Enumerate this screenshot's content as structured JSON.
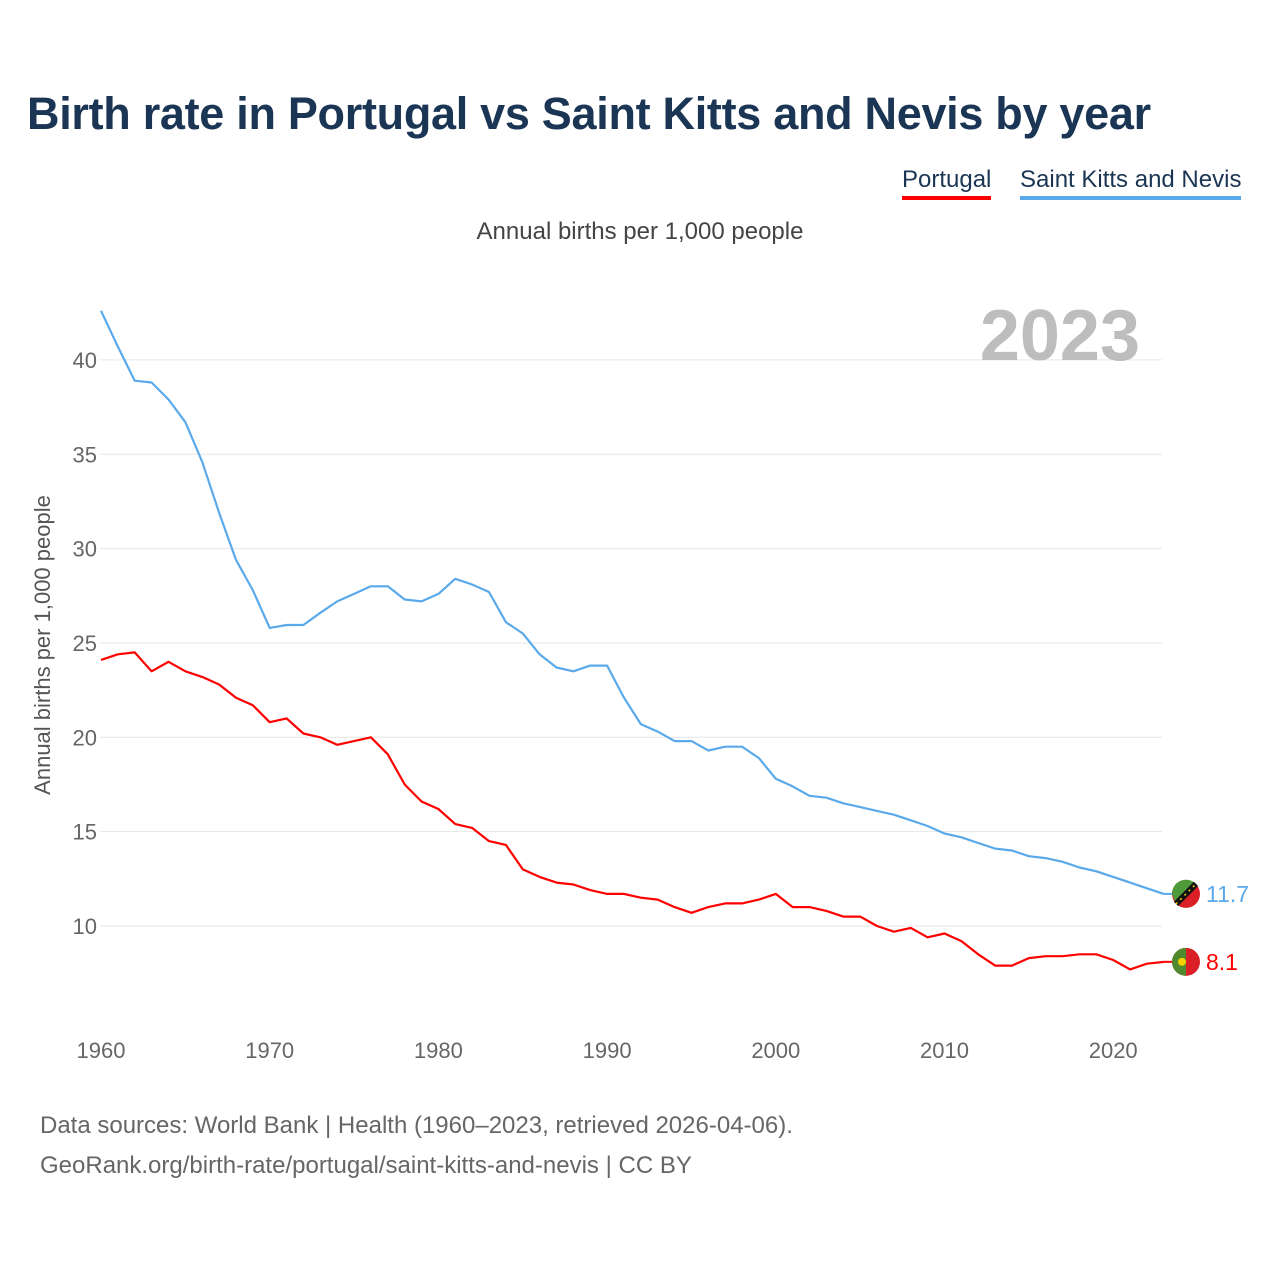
{
  "title": "Birth rate in Portugal vs Saint Kitts and Nevis by year",
  "legend": [
    "Portugal",
    "Saint Kitts and Nevis"
  ],
  "subtitle": "Annual births per 1,000 people",
  "year_label": "2023",
  "footer": {
    "line1": "Data sources: World Bank | Health (1960–2023, retrieved 2026-04-06).",
    "line2": "GeoRank.org/birth-rate/portugal/saint-kitts-and-nevis | CC BY"
  },
  "chart_data": {
    "type": "line",
    "title": "Birth rate in Portugal vs Saint Kitts and Nevis by year",
    "xlabel": "",
    "ylabel": "Annual births per 1,000 people",
    "xlim": [
      1960,
      2023
    ],
    "ylim": [
      5,
      43
    ],
    "grid": true,
    "legend_position": "top-right",
    "x_ticks": [
      "1960",
      "1970",
      "1980",
      "1990",
      "2000",
      "2010",
      "2020"
    ],
    "y_ticks": [
      "10",
      "15",
      "20",
      "25",
      "30",
      "35",
      "40"
    ],
    "x_start": 1960,
    "series": [
      {
        "name": "Portugal",
        "color": "#ff0000",
        "end_label": "8.1",
        "values": [
          24.1,
          24.4,
          24.5,
          23.5,
          24.0,
          23.5,
          23.2,
          22.8,
          22.1,
          21.7,
          20.8,
          21.0,
          20.2,
          20.0,
          19.6,
          19.8,
          20.0,
          19.1,
          17.5,
          16.6,
          16.2,
          15.4,
          15.2,
          14.5,
          14.3,
          13.0,
          12.6,
          12.3,
          12.2,
          11.9,
          11.7,
          11.7,
          11.5,
          11.4,
          11.0,
          10.7,
          11.0,
          11.2,
          11.2,
          11.4,
          11.7,
          11.0,
          11.0,
          10.8,
          10.5,
          10.5,
          10.0,
          9.7,
          9.9,
          9.4,
          9.6,
          9.2,
          8.5,
          7.9,
          7.9,
          8.3,
          8.4,
          8.4,
          8.5,
          8.5,
          8.2,
          7.7,
          8.0,
          8.1
        ]
      },
      {
        "name": "Saint Kitts and Nevis",
        "color": "#5aa9ea",
        "end_label": "11.7",
        "values": [
          42.6,
          40.7,
          38.9,
          38.8,
          37.9,
          36.7,
          34.6,
          31.9,
          29.4,
          27.8,
          25.8,
          25.95,
          25.95,
          26.6,
          27.2,
          27.6,
          28.0,
          28.0,
          27.3,
          27.2,
          27.6,
          28.4,
          28.1,
          27.7,
          26.1,
          25.5,
          24.4,
          23.7,
          23.5,
          23.8,
          23.8,
          22.1,
          20.7,
          20.3,
          19.8,
          19.8,
          19.3,
          19.5,
          19.5,
          18.9,
          17.8,
          17.4,
          16.9,
          16.8,
          16.5,
          16.3,
          16.1,
          15.9,
          15.6,
          15.3,
          14.9,
          14.7,
          14.4,
          14.1,
          14.0,
          13.7,
          13.6,
          13.4,
          13.1,
          12.9,
          12.6,
          12.3,
          12.0,
          11.7
        ]
      }
    ]
  }
}
